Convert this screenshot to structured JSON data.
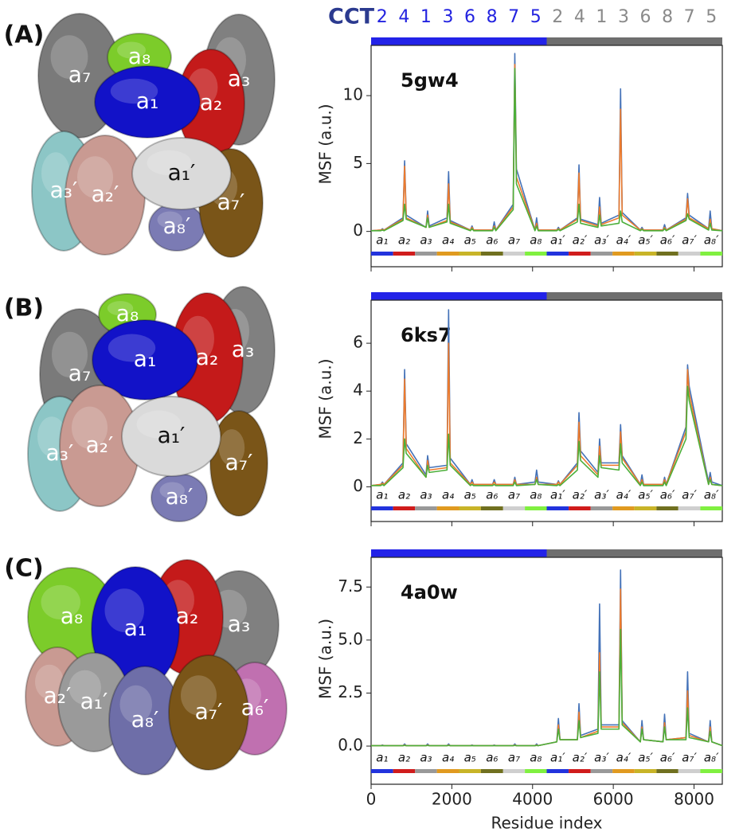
{
  "ring_header": {
    "title": "CCT",
    "title_color": "#2b3a8f",
    "first_ring": [
      "2",
      "4",
      "1",
      "3",
      "6",
      "8",
      "7",
      "5"
    ],
    "first_color": "#2323e0",
    "second_ring": [
      "2",
      "4",
      "1",
      "3",
      "6",
      "8",
      "7",
      "5"
    ],
    "second_color": "#8a8a8a"
  },
  "panels": [
    {
      "label": "(A)",
      "subunits": [
        {
          "label": "a₇",
          "color": "#7a7a7a"
        },
        {
          "label": "a₃",
          "color": "#808080"
        },
        {
          "label": "a₃′",
          "color": "#8cc6c6"
        },
        {
          "label": "a₈",
          "color": "#7ccc2a"
        },
        {
          "label": "a₂",
          "color": "#c41a1a"
        },
        {
          "label": "a₁",
          "color": "#1212c8"
        },
        {
          "label": "a₂′",
          "color": "#c99a92"
        },
        {
          "label": "a₈′",
          "color": "#7b7bb4"
        },
        {
          "label": "a₇′",
          "color": "#7a5518"
        },
        {
          "label": "a₁′",
          "color": "#dadada",
          "dark_text": true
        }
      ]
    },
    {
      "label": "(B)",
      "subunits": [
        {
          "label": "a₇",
          "color": "#7a7a7a"
        },
        {
          "label": "a₃",
          "color": "#808080"
        },
        {
          "label": "a₃′",
          "color": "#8cc6c6"
        },
        {
          "label": "a₈",
          "color": "#7ccc2a"
        },
        {
          "label": "a₂",
          "color": "#c41a1a"
        },
        {
          "label": "a₁",
          "color": "#1212c8"
        },
        {
          "label": "a₂′",
          "color": "#c99a92"
        },
        {
          "label": "a₈′",
          "color": "#7b7bb4"
        },
        {
          "label": "a₇′",
          "color": "#7a5518"
        },
        {
          "label": "a₁′",
          "color": "#dadada",
          "dark_text": true
        }
      ]
    },
    {
      "label": "(C)",
      "subunits": [
        {
          "label": "a₃",
          "color": "#808080"
        },
        {
          "label": "a₈",
          "color": "#7ccc2a"
        },
        {
          "label": "a₂",
          "color": "#c41a1a"
        },
        {
          "label": "a₁",
          "color": "#1212c8"
        },
        {
          "label": "a₆′",
          "color": "#c070b0"
        },
        {
          "label": "a₂′",
          "color": "#c99a92"
        },
        {
          "label": "a₁′",
          "color": "#9a9a9a"
        },
        {
          "label": "a₈′",
          "color": "#6e6ea8"
        },
        {
          "label": "a₇′",
          "color": "#7a5518"
        }
      ]
    }
  ],
  "domains": [
    {
      "label": "a₁",
      "start": 0,
      "end": 545,
      "color": "#2233dd"
    },
    {
      "label": "a₂",
      "start": 545,
      "end": 1090,
      "color": "#d01c1c"
    },
    {
      "label": "a₃",
      "start": 1090,
      "end": 1630,
      "color": "#999999"
    },
    {
      "label": "a₄",
      "start": 1630,
      "end": 2180,
      "color": "#e09a20"
    },
    {
      "label": "a₅",
      "start": 2180,
      "end": 2720,
      "color": "#c8b428"
    },
    {
      "label": "a₆",
      "start": 2720,
      "end": 3270,
      "color": "#707020"
    },
    {
      "label": "a₇",
      "start": 3270,
      "end": 3810,
      "color": "#cfcfcf"
    },
    {
      "label": "a₈",
      "start": 3810,
      "end": 4350,
      "color": "#80f040"
    },
    {
      "label": "a₁′",
      "start": 4350,
      "end": 4895,
      "color": "#2233dd"
    },
    {
      "label": "a₂′",
      "start": 4895,
      "end": 5440,
      "color": "#d01c1c"
    },
    {
      "label": "a₃′",
      "start": 5440,
      "end": 5980,
      "color": "#999999"
    },
    {
      "label": "a₄′",
      "start": 5980,
      "end": 6525,
      "color": "#e09a20"
    },
    {
      "label": "a₅′",
      "start": 6525,
      "end": 7070,
      "color": "#c8b428"
    },
    {
      "label": "a₆′",
      "start": 7070,
      "end": 7610,
      "color": "#707020"
    },
    {
      "label": "a₇′",
      "start": 7610,
      "end": 8155,
      "color": "#cfcfcf"
    },
    {
      "label": "a₈′",
      "start": 8155,
      "end": 8700,
      "color": "#80f040"
    }
  ],
  "chart_data": [
    {
      "type": "line",
      "title": "5gw4",
      "ylabel": "MSF (a.u.)",
      "xlim": [
        0,
        8700
      ],
      "ylim": [
        -2.6,
        13.7
      ],
      "yticks": [
        0,
        5,
        10
      ],
      "xticks": [
        0,
        2000,
        4000,
        6000,
        8000
      ],
      "xtick_labels": false,
      "ring_bar": [
        {
          "start": 0,
          "end": 4350,
          "color": "#2323e8"
        },
        {
          "start": 4350,
          "end": 8700,
          "color": "#6e6e6e"
        }
      ],
      "x": [
        0,
        240,
        280,
        320,
        790,
        830,
        870,
        1360,
        1400,
        1440,
        1880,
        1920,
        1960,
        2460,
        2500,
        2540,
        3010,
        3050,
        3090,
        3520,
        3560,
        3600,
        4060,
        4100,
        4140,
        4600,
        4640,
        4680,
        5110,
        5150,
        5190,
        5620,
        5660,
        5700,
        6140,
        6180,
        6220,
        6670,
        6710,
        6750,
        7230,
        7270,
        7310,
        7800,
        7840,
        7880,
        8360,
        8400,
        8440,
        8700
      ],
      "series": [
        {
          "color": "#4472b8",
          "values": [
            0.05,
            0.1,
            0.2,
            0.1,
            1.0,
            5.2,
            1.2,
            0.3,
            1.5,
            0.4,
            1.0,
            4.4,
            0.8,
            0.1,
            0.4,
            0.1,
            0.1,
            0.7,
            0.1,
            2.0,
            13.1,
            4.6,
            0.1,
            1.0,
            0.1,
            0.1,
            0.3,
            0.1,
            1.0,
            4.9,
            0.9,
            0.5,
            2.5,
            0.6,
            1.2,
            10.5,
            1.4,
            0.1,
            0.3,
            0.1,
            0.1,
            0.5,
            0.1,
            1.0,
            2.8,
            1.2,
            0.2,
            1.5,
            0.2,
            0.05
          ]
        },
        {
          "color": "#ec7a2c",
          "values": [
            0.05,
            0.1,
            0.15,
            0.1,
            0.9,
            4.8,
            1.0,
            0.3,
            1.2,
            0.3,
            0.8,
            3.5,
            0.7,
            0.1,
            0.3,
            0.1,
            0.1,
            0.4,
            0.1,
            1.8,
            12.3,
            4.0,
            0.1,
            0.6,
            0.1,
            0.1,
            0.2,
            0.1,
            0.9,
            4.3,
            0.8,
            0.4,
            1.8,
            0.5,
            1.0,
            9.0,
            1.2,
            0.1,
            0.2,
            0.1,
            0.1,
            0.3,
            0.1,
            0.9,
            2.4,
            1.0,
            0.2,
            0.9,
            0.2,
            0.05
          ]
        },
        {
          "color": "#4caf3a",
          "values": [
            0.05,
            0.05,
            0.1,
            0.05,
            0.8,
            2.0,
            0.9,
            0.3,
            1.0,
            0.3,
            0.7,
            2.0,
            0.6,
            0.05,
            0.2,
            0.05,
            0.05,
            0.3,
            0.05,
            1.6,
            12.0,
            3.5,
            0.05,
            0.4,
            0.05,
            0.05,
            0.15,
            0.05,
            0.7,
            2.0,
            0.6,
            0.3,
            1.2,
            0.4,
            0.6,
            1.5,
            0.7,
            0.05,
            0.15,
            0.05,
            0.05,
            0.2,
            0.05,
            0.8,
            1.3,
            0.9,
            0.1,
            0.6,
            0.1,
            0.05
          ]
        }
      ]
    },
    {
      "type": "line",
      "title": "6ks7",
      "ylabel": "MSF (a.u.)",
      "xlim": [
        0,
        8700
      ],
      "ylim": [
        -1.45,
        7.8
      ],
      "yticks": [
        0,
        2,
        4,
        6
      ],
      "xticks": [
        0,
        2000,
        4000,
        6000,
        8000
      ],
      "xtick_labels": false,
      "ring_bar": [
        {
          "start": 0,
          "end": 4350,
          "color": "#2323e8"
        },
        {
          "start": 4350,
          "end": 8700,
          "color": "#6e6e6e"
        }
      ],
      "x": [
        0,
        240,
        280,
        320,
        790,
        830,
        870,
        1360,
        1400,
        1440,
        1880,
        1920,
        1960,
        2460,
        2500,
        2540,
        3010,
        3050,
        3090,
        3520,
        3560,
        3600,
        4060,
        4100,
        4140,
        4600,
        4640,
        4680,
        5110,
        5150,
        5190,
        5620,
        5660,
        5700,
        6140,
        6180,
        6220,
        6670,
        6710,
        6750,
        7230,
        7270,
        7310,
        7800,
        7840,
        7880,
        8360,
        8400,
        8440,
        8700
      ],
      "series": [
        {
          "color": "#4472b8",
          "values": [
            0.05,
            0.1,
            0.2,
            0.1,
            1.0,
            4.9,
            1.8,
            0.5,
            1.3,
            0.8,
            0.9,
            7.4,
            1.2,
            0.1,
            0.3,
            0.1,
            0.1,
            0.3,
            0.1,
            0.1,
            0.4,
            0.1,
            0.2,
            0.7,
            0.2,
            0.1,
            0.25,
            0.1,
            1.0,
            3.1,
            1.5,
            0.6,
            2.0,
            1.0,
            1.0,
            2.6,
            1.3,
            0.1,
            0.5,
            0.1,
            0.1,
            0.4,
            0.1,
            2.5,
            5.1,
            4.2,
            0.2,
            0.6,
            0.2,
            0.05
          ]
        },
        {
          "color": "#ec7a2c",
          "values": [
            0.05,
            0.1,
            0.15,
            0.1,
            0.9,
            4.5,
            1.6,
            0.4,
            1.1,
            0.7,
            0.8,
            6.0,
            1.0,
            0.1,
            0.2,
            0.1,
            0.1,
            0.2,
            0.1,
            0.1,
            0.3,
            0.1,
            0.1,
            0.4,
            0.1,
            0.1,
            0.2,
            0.1,
            0.9,
            2.7,
            1.3,
            0.5,
            1.7,
            0.9,
            0.9,
            2.3,
            1.2,
            0.1,
            0.3,
            0.1,
            0.1,
            0.3,
            0.1,
            2.3,
            4.9,
            3.9,
            0.1,
            0.4,
            0.1,
            0.05
          ]
        },
        {
          "color": "#4caf3a",
          "values": [
            0.05,
            0.05,
            0.1,
            0.05,
            0.8,
            2.0,
            1.4,
            0.4,
            0.9,
            0.6,
            0.7,
            2.2,
            0.9,
            0.05,
            0.1,
            0.05,
            0.05,
            0.1,
            0.05,
            0.05,
            0.2,
            0.05,
            0.1,
            0.3,
            0.1,
            0.05,
            0.1,
            0.05,
            0.7,
            1.9,
            1.1,
            0.4,
            1.3,
            0.8,
            0.7,
            1.8,
            1.0,
            0.05,
            0.2,
            0.05,
            0.05,
            0.2,
            0.05,
            2.0,
            4.2,
            3.6,
            0.1,
            0.3,
            0.1,
            0.05
          ]
        }
      ]
    },
    {
      "type": "line",
      "title": "4a0w",
      "ylabel": "MSF (a.u.)",
      "xlabel": "Residue index",
      "xlim": [
        0,
        8700
      ],
      "ylim": [
        -1.8,
        8.9
      ],
      "yticks": [
        {
          "value": 0,
          "label": "0.0"
        },
        {
          "value": 2.5,
          "label": "2.5"
        },
        {
          "value": 5,
          "label": "5.0"
        },
        {
          "value": 7.5,
          "label": "7.5"
        }
      ],
      "xticks": [
        0,
        2000,
        4000,
        6000,
        8000
      ],
      "xtick_labels": true,
      "ring_bar": [
        {
          "start": 0,
          "end": 4350,
          "color": "#2323e8"
        },
        {
          "start": 4350,
          "end": 8700,
          "color": "#6e6e6e"
        }
      ],
      "x": [
        0,
        240,
        280,
        320,
        790,
        830,
        870,
        1360,
        1400,
        1440,
        1880,
        1920,
        1960,
        2460,
        2500,
        2540,
        3010,
        3050,
        3090,
        3520,
        3560,
        3600,
        4060,
        4100,
        4140,
        4600,
        4640,
        4680,
        5110,
        5150,
        5190,
        5620,
        5660,
        5700,
        6140,
        6180,
        6220,
        6670,
        6710,
        6750,
        7230,
        7270,
        7310,
        7800,
        7840,
        7880,
        8360,
        8400,
        8440,
        8700
      ],
      "series": [
        {
          "color": "#4472b8",
          "values": [
            0.02,
            0.02,
            0.05,
            0.02,
            0.02,
            0.1,
            0.02,
            0.02,
            0.1,
            0.02,
            0.02,
            0.1,
            0.02,
            0.02,
            0.05,
            0.02,
            0.02,
            0.05,
            0.02,
            0.02,
            0.1,
            0.02,
            0.02,
            0.1,
            0.02,
            0.2,
            1.3,
            0.3,
            0.3,
            2.0,
            0.5,
            0.8,
            6.7,
            1.0,
            1.0,
            8.3,
            1.2,
            0.2,
            1.2,
            0.3,
            0.2,
            1.5,
            0.3,
            0.4,
            3.5,
            0.6,
            0.2,
            1.2,
            0.2,
            0.02
          ]
        },
        {
          "color": "#ec7a2c",
          "values": [
            0.02,
            0.02,
            0.03,
            0.02,
            0.02,
            0.05,
            0.02,
            0.02,
            0.05,
            0.02,
            0.02,
            0.05,
            0.02,
            0.02,
            0.03,
            0.02,
            0.02,
            0.03,
            0.02,
            0.02,
            0.05,
            0.02,
            0.02,
            0.05,
            0.02,
            0.2,
            1.0,
            0.3,
            0.3,
            1.6,
            0.4,
            0.7,
            4.4,
            0.9,
            0.9,
            7.4,
            1.1,
            0.2,
            0.9,
            0.3,
            0.2,
            1.1,
            0.3,
            0.4,
            2.6,
            0.5,
            0.2,
            0.9,
            0.2,
            0.02
          ]
        },
        {
          "color": "#4caf3a",
          "values": [
            0.02,
            0.02,
            0.02,
            0.02,
            0.02,
            0.03,
            0.02,
            0.02,
            0.03,
            0.02,
            0.02,
            0.03,
            0.02,
            0.02,
            0.02,
            0.02,
            0.02,
            0.02,
            0.02,
            0.02,
            0.03,
            0.02,
            0.02,
            0.03,
            0.02,
            0.2,
            0.8,
            0.3,
            0.3,
            1.2,
            0.4,
            0.6,
            3.5,
            0.8,
            0.8,
            5.5,
            1.0,
            0.2,
            0.8,
            0.3,
            0.2,
            0.9,
            0.3,
            0.3,
            1.8,
            0.4,
            0.2,
            0.7,
            0.2,
            0.02
          ]
        }
      ]
    }
  ]
}
